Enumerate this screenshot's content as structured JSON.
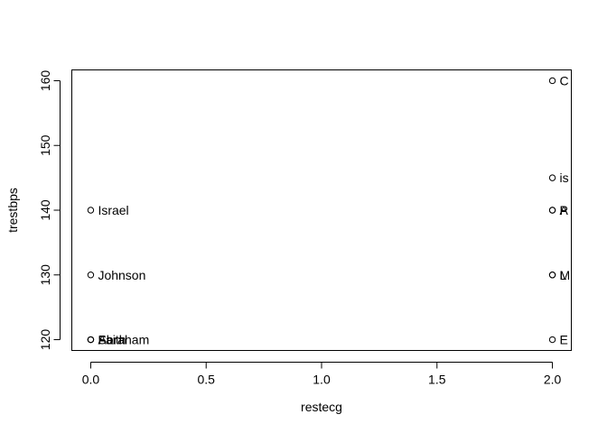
{
  "chart_data": {
    "type": "scatter",
    "title": "",
    "xlabel": "restecg",
    "ylabel": "trestbps",
    "xlim": [
      -0.08,
      2.08
    ],
    "ylim": [
      118.4,
      161.6
    ],
    "xticks": [
      "0.0",
      "0.5",
      "1.0",
      "1.5",
      "2.0"
    ],
    "yticks": [
      "120",
      "130",
      "140",
      "150",
      "160"
    ],
    "grid": false,
    "points": [
      {
        "x": 0,
        "y": 140,
        "label": "Israel"
      },
      {
        "x": 0,
        "y": 130,
        "label": "Johnson"
      },
      {
        "x": 0,
        "y": 120,
        "label": "Abraham"
      },
      {
        "x": 0,
        "y": 120,
        "label": "Faith"
      },
      {
        "x": 0,
        "y": 120,
        "label": "Sara"
      },
      {
        "x": 2,
        "y": 160,
        "label": "C"
      },
      {
        "x": 2,
        "y": 145,
        "label": "is"
      },
      {
        "x": 2,
        "y": 140,
        "label": "A"
      },
      {
        "x": 2,
        "y": 140,
        "label": "P"
      },
      {
        "x": 2,
        "y": 130,
        "label": "M"
      },
      {
        "x": 2,
        "y": 130,
        "label": "L"
      },
      {
        "x": 2,
        "y": 120,
        "label": "E"
      }
    ]
  }
}
